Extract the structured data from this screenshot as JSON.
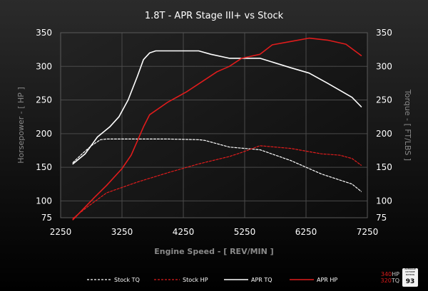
{
  "chart_data": {
    "type": "line",
    "title": "1.8T - APR Stage III+ vs Stock",
    "xlabel": "Engine Speed - [ REV/MIN ]",
    "ylabel_left": "Horsepower - [ HP ]",
    "ylabel_right": "Torque - [ FT/LBS ]",
    "xlim": [
      2250,
      7250
    ],
    "ylim": [
      75,
      350
    ],
    "x_ticks": [
      "2250",
      "3250",
      "4250",
      "5250",
      "6250",
      "7250"
    ],
    "y_ticks": [
      "350",
      "300",
      "250",
      "200",
      "150",
      "100",
      "75"
    ],
    "grid": true,
    "legend_position": "bottom",
    "series": [
      {
        "name": "Stock TQ",
        "color": "#ffffff",
        "dash": true,
        "points": [
          [
            2450,
            157
          ],
          [
            2600,
            170
          ],
          [
            2750,
            182
          ],
          [
            2900,
            191
          ],
          [
            3000,
            192
          ],
          [
            3500,
            192
          ],
          [
            4000,
            192
          ],
          [
            4500,
            191
          ],
          [
            4600,
            190
          ],
          [
            5000,
            180
          ],
          [
            5500,
            176
          ],
          [
            6000,
            160
          ],
          [
            6500,
            140
          ],
          [
            7000,
            125
          ],
          [
            7150,
            114
          ]
        ]
      },
      {
        "name": "Stock HP",
        "color": "#e01c1c",
        "dash": true,
        "points": [
          [
            2450,
            74
          ],
          [
            2700,
            92
          ],
          [
            3000,
            112
          ],
          [
            3500,
            128
          ],
          [
            4000,
            142
          ],
          [
            4500,
            155
          ],
          [
            5000,
            166
          ],
          [
            5200,
            172
          ],
          [
            5500,
            182
          ],
          [
            6000,
            178
          ],
          [
            6500,
            170
          ],
          [
            6800,
            168
          ],
          [
            7000,
            163
          ],
          [
            7150,
            153
          ]
        ]
      },
      {
        "name": "APR TQ",
        "color": "#ffffff",
        "dash": false,
        "points": [
          [
            2450,
            155
          ],
          [
            2650,
            170
          ],
          [
            2850,
            195
          ],
          [
            3050,
            210
          ],
          [
            3200,
            225
          ],
          [
            3350,
            250
          ],
          [
            3500,
            285
          ],
          [
            3600,
            310
          ],
          [
            3700,
            320
          ],
          [
            3800,
            323
          ],
          [
            4000,
            323
          ],
          [
            4500,
            323
          ],
          [
            4700,
            318
          ],
          [
            5000,
            312
          ],
          [
            5500,
            312
          ],
          [
            6000,
            298
          ],
          [
            6300,
            290
          ],
          [
            6600,
            275
          ],
          [
            7000,
            254
          ],
          [
            7150,
            240
          ]
        ]
      },
      {
        "name": "APR HP",
        "color": "#e01c1c",
        "dash": false,
        "points": [
          [
            2450,
            72
          ],
          [
            2800,
            105
          ],
          [
            3000,
            123
          ],
          [
            3250,
            148
          ],
          [
            3400,
            168
          ],
          [
            3600,
            210
          ],
          [
            3700,
            228
          ],
          [
            4000,
            247
          ],
          [
            4300,
            262
          ],
          [
            4600,
            280
          ],
          [
            4800,
            292
          ],
          [
            5000,
            300
          ],
          [
            5200,
            312
          ],
          [
            5500,
            318
          ],
          [
            5700,
            332
          ],
          [
            6000,
            337
          ],
          [
            6300,
            342
          ],
          [
            6600,
            339
          ],
          [
            6900,
            333
          ],
          [
            7150,
            316
          ]
        ]
      }
    ]
  },
  "badge": {
    "hp_value": "340",
    "hp_unit": "HP",
    "tq_value": "320",
    "tq_unit": "TQ",
    "fine_print": "AVERAGE OCTANE RATING",
    "octane": "93"
  }
}
